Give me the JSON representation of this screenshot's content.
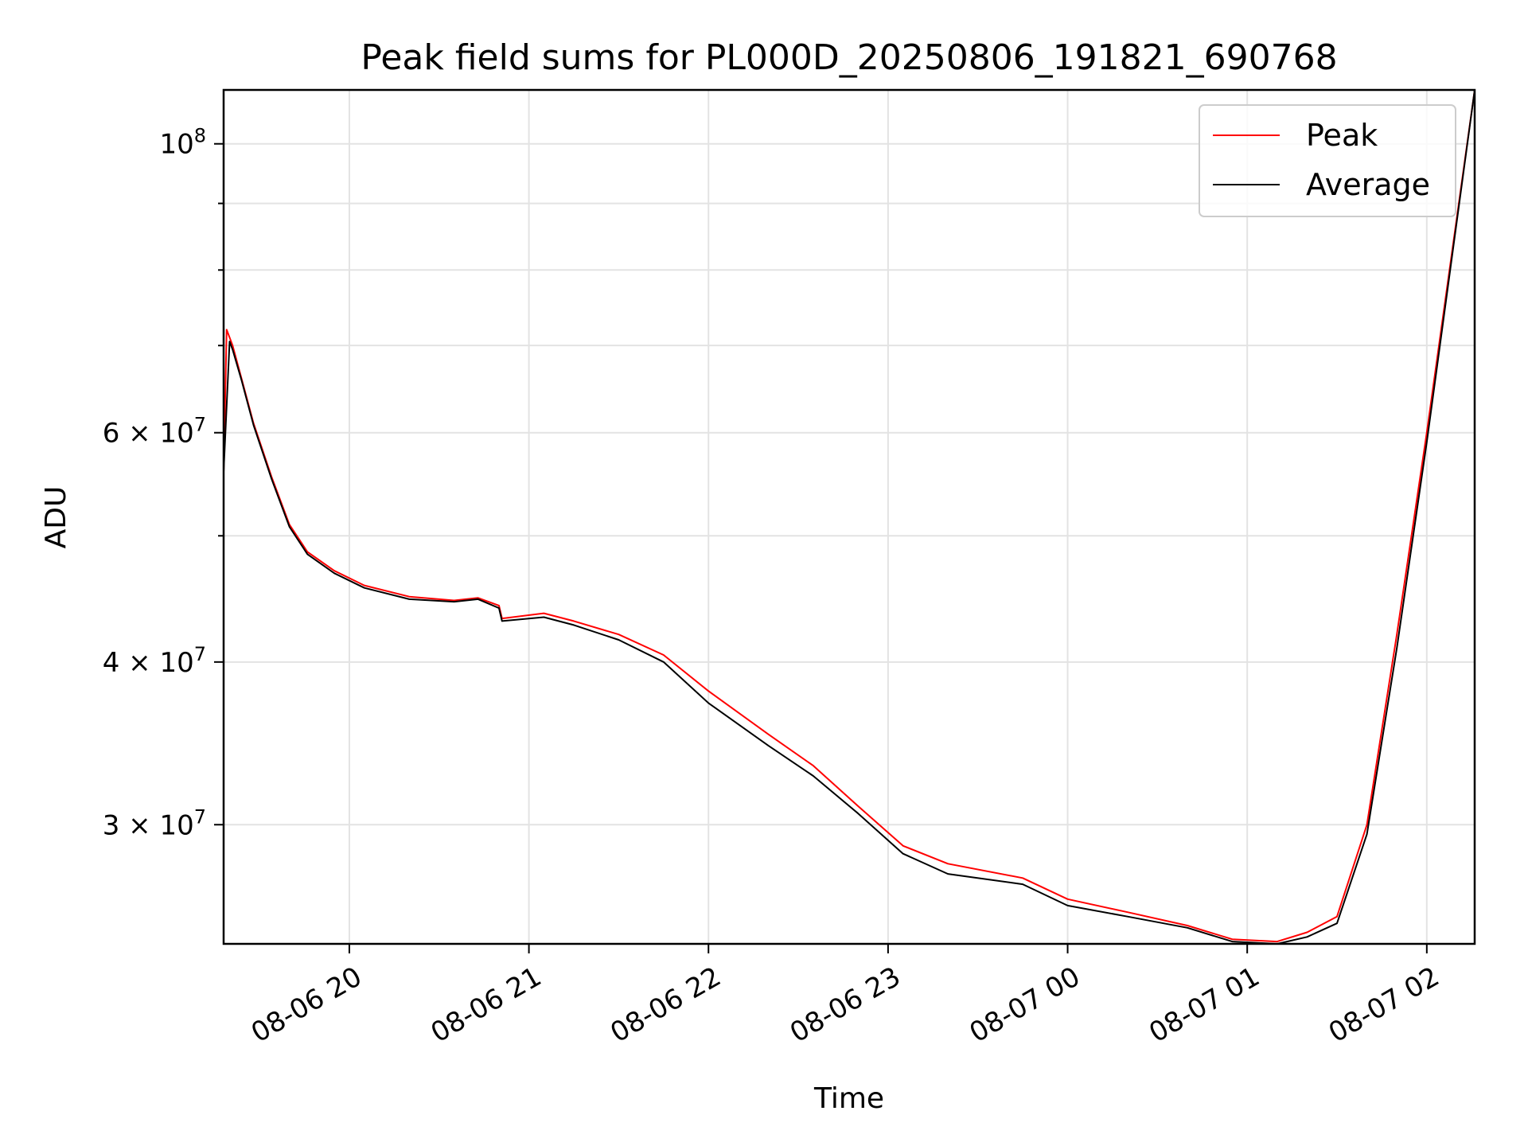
{
  "chart_data": {
    "type": "line",
    "title": "Peak field sums for PL000D_20250806_191821_690768",
    "xlabel": "Time",
    "ylabel": "ADU",
    "yscale": "log",
    "ylim": [
      24300000,
      110000000
    ],
    "xlim": [
      "2025-08-06 19:18",
      "2025-08-07 02:16"
    ],
    "x_ticks": [
      "08-06 20",
      "08-06 21",
      "08-06 22",
      "08-06 23",
      "08-07 00",
      "08-07 01",
      "08-07 02"
    ],
    "x_tick_times": [
      "2025-08-06 20:00",
      "2025-08-06 21:00",
      "2025-08-06 22:00",
      "2025-08-06 23:00",
      "2025-08-07 00:00",
      "2025-08-07 01:00",
      "2025-08-07 02:00"
    ],
    "y_ticks": [
      {
        "value": 30000000,
        "mantissa": "3",
        "exp": "7"
      },
      {
        "value": 40000000,
        "mantissa": "4",
        "exp": "7"
      },
      {
        "value": 60000000,
        "mantissa": "6",
        "exp": "7"
      },
      {
        "value": 100000000,
        "mantissa": "",
        "exp": "8"
      }
    ],
    "y_minor_ticks": [
      50000000,
      70000000,
      80000000,
      90000000
    ],
    "grid": true,
    "legend_position": "top-right",
    "series": [
      {
        "name": "Peak",
        "color": "#ff0000",
        "points": [
          [
            "2025-08-06 19:18",
            56000000
          ],
          [
            "2025-08-06 19:19",
            72000000
          ],
          [
            "2025-08-06 19:21",
            70000000
          ],
          [
            "2025-08-06 19:24",
            66000000
          ],
          [
            "2025-08-06 19:28",
            61000000
          ],
          [
            "2025-08-06 19:34",
            55500000
          ],
          [
            "2025-08-06 19:40",
            51000000
          ],
          [
            "2025-08-06 19:46",
            48600000
          ],
          [
            "2025-08-06 19:55",
            47000000
          ],
          [
            "2025-08-06 20:05",
            45800000
          ],
          [
            "2025-08-06 20:20",
            44900000
          ],
          [
            "2025-08-06 20:35",
            44600000
          ],
          [
            "2025-08-06 20:43",
            44800000
          ],
          [
            "2025-08-06 20:50",
            44200000
          ],
          [
            "2025-08-06 20:51",
            43200000
          ],
          [
            "2025-08-06 21:05",
            43600000
          ],
          [
            "2025-08-06 21:15",
            43000000
          ],
          [
            "2025-08-06 21:30",
            42000000
          ],
          [
            "2025-08-06 21:45",
            40500000
          ],
          [
            "2025-08-06 22:00",
            38000000
          ],
          [
            "2025-08-06 22:20",
            35200000
          ],
          [
            "2025-08-06 22:35",
            33300000
          ],
          [
            "2025-08-06 22:50",
            31000000
          ],
          [
            "2025-08-06 23:05",
            28900000
          ],
          [
            "2025-08-06 23:20",
            28000000
          ],
          [
            "2025-08-06 23:45",
            27300000
          ],
          [
            "2025-08-07 00:00",
            26300000
          ],
          [
            "2025-08-07 00:20",
            25700000
          ],
          [
            "2025-08-07 00:40",
            25100000
          ],
          [
            "2025-08-07 00:55",
            24500000
          ],
          [
            "2025-08-07 01:10",
            24400000
          ],
          [
            "2025-08-07 01:20",
            24800000
          ],
          [
            "2025-08-07 01:30",
            25500000
          ],
          [
            "2025-08-07 01:40",
            30000000
          ],
          [
            "2025-08-07 01:50",
            42000000
          ],
          [
            "2025-08-07 02:00",
            60000000
          ],
          [
            "2025-08-07 02:16",
            110000000
          ]
        ]
      },
      {
        "name": "Average",
        "color": "#000000",
        "points": [
          [
            "2025-08-06 19:18",
            56000000
          ],
          [
            "2025-08-06 19:20",
            70500000
          ],
          [
            "2025-08-06 19:21",
            69500000
          ],
          [
            "2025-08-06 19:24",
            65800000
          ],
          [
            "2025-08-06 19:28",
            60800000
          ],
          [
            "2025-08-06 19:34",
            55300000
          ],
          [
            "2025-08-06 19:40",
            50800000
          ],
          [
            "2025-08-06 19:46",
            48400000
          ],
          [
            "2025-08-06 19:55",
            46800000
          ],
          [
            "2025-08-06 20:05",
            45600000
          ],
          [
            "2025-08-06 20:20",
            44700000
          ],
          [
            "2025-08-06 20:35",
            44500000
          ],
          [
            "2025-08-06 20:43",
            44700000
          ],
          [
            "2025-08-06 20:50",
            44000000
          ],
          [
            "2025-08-06 20:51",
            43000000
          ],
          [
            "2025-08-06 21:05",
            43300000
          ],
          [
            "2025-08-06 21:15",
            42700000
          ],
          [
            "2025-08-06 21:30",
            41600000
          ],
          [
            "2025-08-06 21:45",
            40000000
          ],
          [
            "2025-08-06 22:00",
            37200000
          ],
          [
            "2025-08-06 22:20",
            34500000
          ],
          [
            "2025-08-06 22:35",
            32700000
          ],
          [
            "2025-08-06 22:50",
            30600000
          ],
          [
            "2025-08-06 23:05",
            28500000
          ],
          [
            "2025-08-06 23:20",
            27500000
          ],
          [
            "2025-08-06 23:45",
            27000000
          ],
          [
            "2025-08-07 00:00",
            26000000
          ],
          [
            "2025-08-07 00:20",
            25500000
          ],
          [
            "2025-08-07 00:40",
            25000000
          ],
          [
            "2025-08-07 00:55",
            24400000
          ],
          [
            "2025-08-07 01:10",
            24300000
          ],
          [
            "2025-08-07 01:20",
            24600000
          ],
          [
            "2025-08-07 01:30",
            25200000
          ],
          [
            "2025-08-07 01:40",
            29500000
          ],
          [
            "2025-08-07 01:50",
            41000000
          ],
          [
            "2025-08-07 02:00",
            59000000
          ],
          [
            "2025-08-07 02:16",
            110000000
          ]
        ]
      }
    ]
  }
}
